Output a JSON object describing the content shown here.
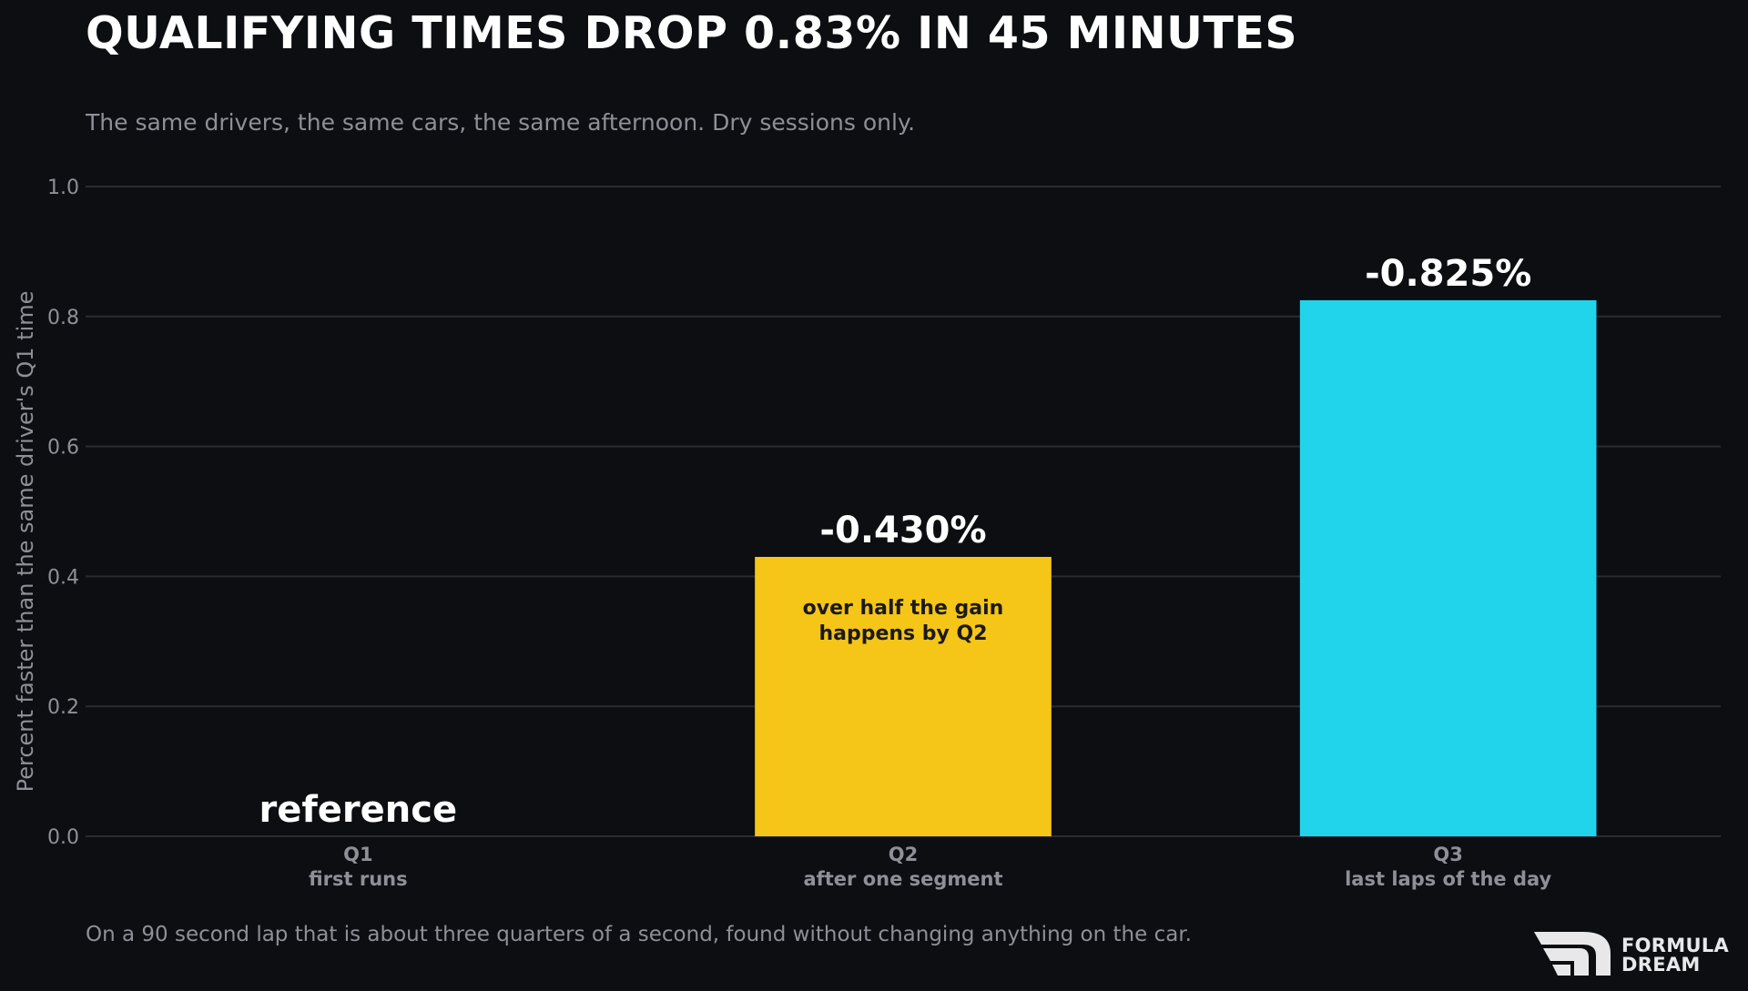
{
  "chart_data": {
    "type": "bar",
    "title": "QUALIFYING TIMES DROP 0.83% IN 45 MINUTES",
    "subtitle": "The same drivers, the same cars, the same afternoon. Dry sessions only.",
    "ylabel": "Percent faster than the same driver's Q1 time",
    "ylim": [
      0,
      1.0
    ],
    "yticks": [
      0.0,
      0.2,
      0.4,
      0.6,
      0.8,
      1.0
    ],
    "ytick_labels": [
      "0.0",
      "0.2",
      "0.4",
      "0.6",
      "0.8",
      "1.0"
    ],
    "grid": true,
    "categories": [
      {
        "name": "Q1",
        "sub": "first runs",
        "value": 0,
        "label": "reference",
        "color": "#0d0e12"
      },
      {
        "name": "Q2",
        "sub": "after one segment",
        "value": 0.43,
        "label": "-0.430%",
        "color": "#f5c518",
        "annotation": [
          "over half the gain",
          "happens by Q2"
        ]
      },
      {
        "name": "Q3",
        "sub": "last laps of the day",
        "value": 0.825,
        "label": "-0.825%",
        "color": "#22d3ec"
      }
    ]
  },
  "footnote": "On a 90 second lap that is about three quarters of a second, found without changing anything on the car.",
  "brand": {
    "line1": "FORMULA",
    "line2": "DREAM",
    "icon": "formula-dream-logo-icon"
  },
  "colors": {
    "background": "#0d0e12",
    "grid": "#2a2c31",
    "tick_text": "#8e9097",
    "title": "#ffffff"
  }
}
